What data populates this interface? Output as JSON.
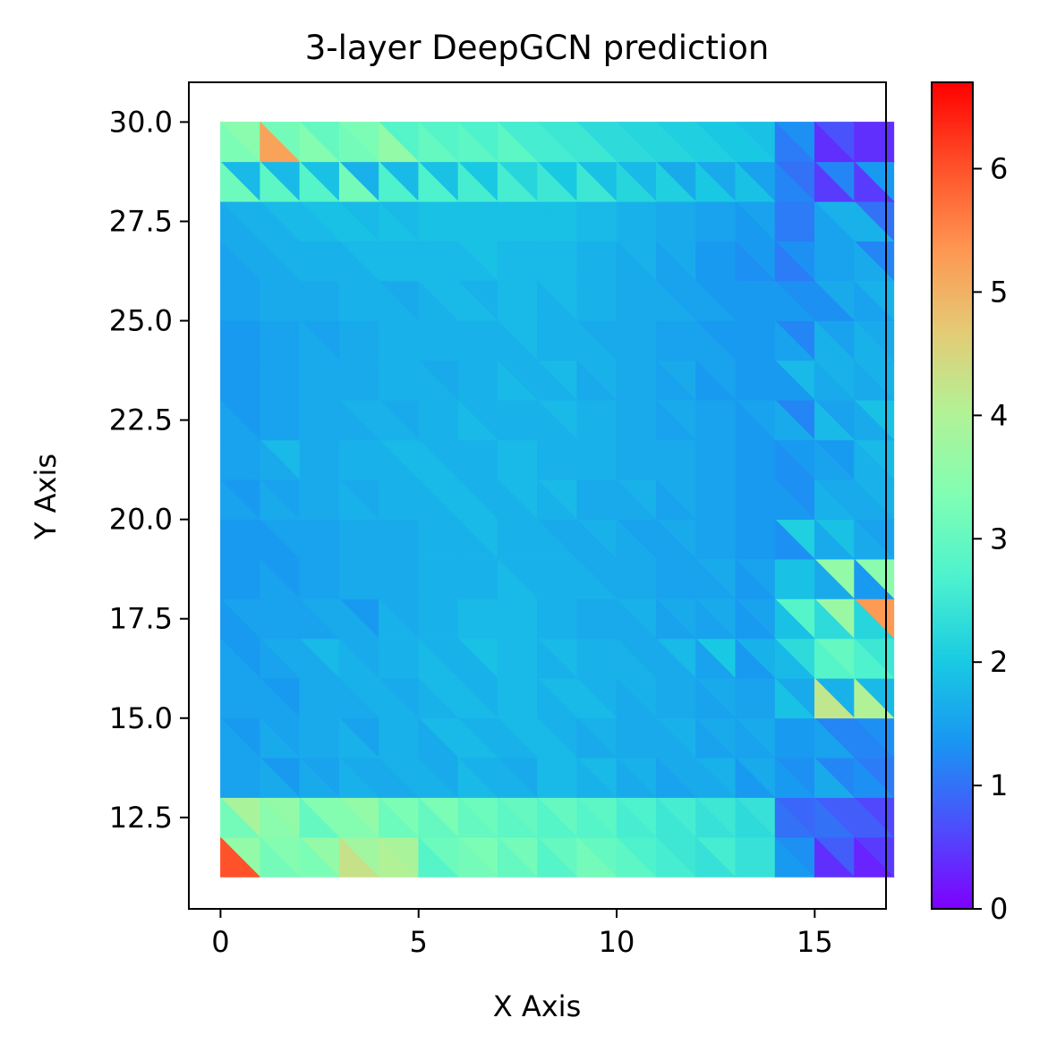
{
  "chart_data": {
    "type": "heatmap",
    "subtype": "tripcolor",
    "title": "3-layer DeepGCN prediction",
    "xlabel": "X Axis",
    "ylabel": "Y Axis",
    "xlim": [
      -0.8,
      16.8
    ],
    "ylim": [
      10.2,
      31.0
    ],
    "xticks": [
      0,
      5,
      10,
      15
    ],
    "xtick_labels": [
      "0",
      "5",
      "10",
      "15"
    ],
    "yticks": [
      12.5,
      15.0,
      17.5,
      20.0,
      22.5,
      25.0,
      27.5,
      30.0
    ],
    "ytick_labels": [
      "12.5",
      "15.0",
      "17.5",
      "20.0",
      "22.5",
      "25.0",
      "27.5",
      "30.0"
    ],
    "x": [
      0,
      1,
      2,
      3,
      4,
      5,
      6,
      7,
      8,
      9,
      10,
      11,
      12,
      13,
      14,
      15,
      16
    ],
    "y": [
      11,
      12,
      13,
      14,
      15,
      16,
      17,
      18,
      19,
      20,
      21,
      22,
      23,
      24,
      25,
      26,
      27,
      28,
      29,
      30
    ],
    "triangulation": "each grid cell split along the diagonal from its top-left to its bottom-right corner",
    "colormap": "rainbow",
    "vmin": 0,
    "vmax": 6.7,
    "colorbar_ticks": [
      0,
      1,
      2,
      3,
      4,
      5,
      6
    ],
    "colorbar_tick_labels": [
      "0",
      "1",
      "2",
      "3",
      "4",
      "5",
      "6"
    ],
    "row_y_bottom": [
      11,
      12,
      13,
      14,
      15,
      16,
      17,
      18,
      19,
      20,
      21,
      22,
      23,
      24,
      25,
      26,
      27,
      28,
      29
    ],
    "upper_triangle_values": [
      [
        3.6,
        3.4,
        3.6,
        3.8,
        3.9,
        3.1,
        3.3,
        3.2,
        3.0,
        3.0,
        2.7,
        2.5,
        2.6,
        2.4,
        1.3,
        0.8,
        0.5
      ],
      [
        3.9,
        3.6,
        3.4,
        3.6,
        3.3,
        3.3,
        3.1,
        3.0,
        3.0,
        2.9,
        2.7,
        2.6,
        2.5,
        2.4,
        0.9,
        0.8,
        0.6
      ],
      [
        1.5,
        1.4,
        1.5,
        1.6,
        1.7,
        1.6,
        1.7,
        1.6,
        1.8,
        1.8,
        1.7,
        1.6,
        1.7,
        1.6,
        1.3,
        1.2,
        1.1
      ],
      [
        1.4,
        1.5,
        1.6,
        1.5,
        1.7,
        1.8,
        1.7,
        1.8,
        1.7,
        1.7,
        1.6,
        1.7,
        1.6,
        1.6,
        1.4,
        1.2,
        1.3
      ],
      [
        1.5,
        1.4,
        1.6,
        1.7,
        1.6,
        1.8,
        1.7,
        1.8,
        1.8,
        1.7,
        1.7,
        1.6,
        1.6,
        1.5,
        1.6,
        1.7,
        1.8
      ],
      [
        1.4,
        1.6,
        1.8,
        1.6,
        1.7,
        1.7,
        1.9,
        1.8,
        1.8,
        1.7,
        1.6,
        1.8,
        2.0,
        1.7,
        2.3,
        3.0,
        2.5
      ],
      [
        1.5,
        1.5,
        1.6,
        1.4,
        1.6,
        1.7,
        1.8,
        1.8,
        1.7,
        1.6,
        1.7,
        1.6,
        1.6,
        1.5,
        2.8,
        3.7,
        5.3
      ],
      [
        1.4,
        1.4,
        1.5,
        1.6,
        1.6,
        1.7,
        1.7,
        1.7,
        1.7,
        1.6,
        1.6,
        1.5,
        1.6,
        1.5,
        1.9,
        3.6,
        3.5
      ],
      [
        1.4,
        1.5,
        1.5,
        1.6,
        1.6,
        1.7,
        1.8,
        1.7,
        1.6,
        1.7,
        1.5,
        1.6,
        1.5,
        1.4,
        2.1,
        1.9,
        1.5
      ],
      [
        1.4,
        1.5,
        1.6,
        1.6,
        1.7,
        1.8,
        1.7,
        1.8,
        1.8,
        1.6,
        1.7,
        1.6,
        1.5,
        1.4,
        1.3,
        1.6,
        1.7
      ],
      [
        1.5,
        1.8,
        1.6,
        1.7,
        1.8,
        1.7,
        1.7,
        1.8,
        1.7,
        1.7,
        1.6,
        1.6,
        1.5,
        1.4,
        1.4,
        1.4,
        1.8
      ],
      [
        1.4,
        1.5,
        1.6,
        1.7,
        1.6,
        1.7,
        1.7,
        1.7,
        1.8,
        1.7,
        1.6,
        1.6,
        1.5,
        1.5,
        1.2,
        1.5,
        1.9
      ],
      [
        1.4,
        1.5,
        1.6,
        1.6,
        1.7,
        1.6,
        1.7,
        1.7,
        1.8,
        1.7,
        1.6,
        1.6,
        1.5,
        1.4,
        1.8,
        1.7,
        1.7
      ],
      [
        1.4,
        1.5,
        1.5,
        1.6,
        1.7,
        1.7,
        1.7,
        1.8,
        1.7,
        1.6,
        1.6,
        1.5,
        1.4,
        1.4,
        1.2,
        1.5,
        1.6
      ],
      [
        1.5,
        1.6,
        1.6,
        1.7,
        1.6,
        1.8,
        1.7,
        1.8,
        1.8,
        1.7,
        1.6,
        1.5,
        1.4,
        1.4,
        1.3,
        1.6,
        1.7
      ],
      [
        1.6,
        1.7,
        1.7,
        1.8,
        1.8,
        1.8,
        1.9,
        1.8,
        1.8,
        1.7,
        1.7,
        1.6,
        1.4,
        1.4,
        1.3,
        1.5,
        1.2
      ],
      [
        1.7,
        1.8,
        1.9,
        1.8,
        1.8,
        1.9,
        1.9,
        1.9,
        1.9,
        1.8,
        1.7,
        1.6,
        1.5,
        1.5,
        1.1,
        1.7,
        1.0
      ],
      [
        1.8,
        1.8,
        1.9,
        1.7,
        1.8,
        1.9,
        2.0,
        2.2,
        2.0,
        1.9,
        1.8,
        1.6,
        1.6,
        1.5,
        1.0,
        1.2,
        1.4
      ],
      [
        3.5,
        3.2,
        3.0,
        3.3,
        2.8,
        2.8,
        2.7,
        2.6,
        2.5,
        2.3,
        2.2,
        2.1,
        2.0,
        1.9,
        1.3,
        0.7,
        0.4
      ]
    ],
    "lower_triangle_values": [
      [
        6.0,
        3.2,
        3.3,
        4.3,
        4.0,
        2.8,
        3.2,
        3.0,
        2.8,
        3.2,
        2.9,
        2.6,
        2.4,
        2.4,
        1.4,
        0.4,
        0.3
      ],
      [
        3.2,
        3.5,
        3.0,
        3.4,
        3.1,
        3.0,
        3.0,
        2.9,
        2.8,
        2.8,
        2.6,
        2.5,
        2.4,
        2.3,
        1.0,
        1.0,
        0.8
      ],
      [
        1.5,
        1.6,
        1.6,
        1.7,
        1.6,
        1.7,
        1.8,
        1.7,
        1.8,
        1.7,
        1.6,
        1.5,
        1.6,
        1.4,
        1.4,
        1.6,
        1.3
      ],
      [
        1.5,
        1.6,
        1.6,
        1.7,
        1.7,
        1.6,
        1.8,
        1.7,
        1.8,
        1.6,
        1.6,
        1.6,
        1.5,
        1.5,
        1.4,
        1.5,
        1.2
      ],
      [
        1.5,
        1.5,
        1.6,
        1.6,
        1.7,
        1.7,
        1.8,
        1.8,
        1.7,
        1.8,
        1.6,
        1.6,
        1.5,
        1.5,
        1.9,
        4.2,
        4.0
      ],
      [
        1.5,
        1.5,
        1.6,
        1.7,
        1.7,
        1.8,
        1.7,
        1.8,
        1.7,
        1.7,
        1.7,
        1.6,
        1.5,
        1.4,
        1.8,
        2.8,
        2.7
      ],
      [
        1.4,
        1.5,
        1.5,
        1.6,
        1.7,
        1.7,
        1.8,
        1.8,
        1.7,
        1.6,
        1.6,
        1.5,
        1.5,
        1.4,
        1.9,
        2.3,
        2.2
      ],
      [
        1.4,
        1.5,
        1.5,
        1.6,
        1.6,
        1.7,
        1.7,
        1.8,
        1.7,
        1.7,
        1.6,
        1.5,
        1.5,
        1.4,
        1.9,
        1.6,
        1.4
      ],
      [
        1.4,
        1.4,
        1.5,
        1.6,
        1.6,
        1.7,
        1.7,
        1.7,
        1.7,
        1.6,
        1.6,
        1.5,
        1.5,
        1.4,
        1.3,
        1.6,
        1.6
      ],
      [
        1.5,
        1.6,
        1.6,
        1.7,
        1.7,
        1.7,
        1.8,
        1.7,
        1.7,
        1.6,
        1.6,
        1.5,
        1.5,
        1.4,
        1.4,
        1.7,
        1.6
      ],
      [
        1.5,
        1.6,
        1.6,
        1.7,
        1.7,
        1.8,
        1.7,
        1.8,
        1.7,
        1.7,
        1.6,
        1.6,
        1.5,
        1.4,
        1.3,
        1.5,
        1.7
      ],
      [
        1.5,
        1.5,
        1.6,
        1.6,
        1.7,
        1.7,
        1.8,
        1.7,
        1.7,
        1.7,
        1.6,
        1.5,
        1.5,
        1.4,
        1.6,
        1.8,
        1.6
      ],
      [
        1.4,
        1.5,
        1.6,
        1.6,
        1.7,
        1.7,
        1.7,
        1.8,
        1.7,
        1.6,
        1.6,
        1.5,
        1.4,
        1.4,
        1.4,
        1.6,
        1.6
      ],
      [
        1.4,
        1.5,
        1.6,
        1.6,
        1.7,
        1.7,
        1.7,
        1.7,
        1.7,
        1.7,
        1.6,
        1.5,
        1.5,
        1.4,
        1.5,
        1.7,
        1.7
      ],
      [
        1.5,
        1.6,
        1.6,
        1.7,
        1.7,
        1.7,
        1.8,
        1.8,
        1.7,
        1.7,
        1.6,
        1.6,
        1.5,
        1.4,
        1.4,
        1.3,
        1.5
      ],
      [
        1.5,
        1.6,
        1.7,
        1.7,
        1.8,
        1.8,
        1.8,
        1.8,
        1.8,
        1.7,
        1.6,
        1.5,
        1.4,
        1.3,
        1.1,
        1.5,
        1.6
      ],
      [
        1.6,
        1.7,
        1.8,
        1.9,
        1.9,
        1.9,
        1.9,
        1.9,
        1.9,
        1.8,
        1.7,
        1.6,
        1.5,
        1.4,
        1.1,
        1.5,
        1.7
      ],
      [
        3.1,
        2.9,
        2.8,
        3.2,
        2.7,
        2.7,
        2.6,
        2.6,
        2.5,
        2.5,
        2.2,
        2.1,
        2.0,
        1.9,
        1.2,
        0.5,
        0.5
      ],
      [
        3.3,
        5.2,
        3.4,
        3.2,
        3.6,
        3.0,
        2.9,
        2.9,
        2.6,
        2.5,
        2.3,
        2.2,
        2.1,
        2.0,
        1.1,
        0.4,
        0.4
      ]
    ]
  }
}
